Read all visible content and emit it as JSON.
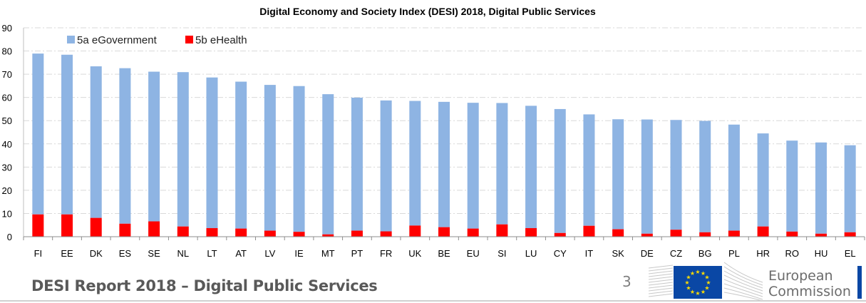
{
  "chart_data": {
    "type": "bar",
    "stacked": true,
    "title": "Digital Economy and Society Index (DESI) 2018, Digital Public Services",
    "xlabel": "",
    "ylabel": "",
    "ylim": [
      0,
      90
    ],
    "yticks": [
      0,
      10,
      20,
      30,
      40,
      50,
      60,
      70,
      80,
      90
    ],
    "grid": true,
    "legend_position": "top-left",
    "categories": [
      "FI",
      "EE",
      "DK",
      "ES",
      "SE",
      "NL",
      "LT",
      "AT",
      "LV",
      "IE",
      "MT",
      "PT",
      "FR",
      "UK",
      "BE",
      "EU",
      "SI",
      "LU",
      "CY",
      "IT",
      "SK",
      "DE",
      "CZ",
      "BG",
      "PL",
      "HR",
      "RO",
      "HU",
      "EL"
    ],
    "totals": [
      78.9,
      78.4,
      73.4,
      72.6,
      71.1,
      70.9,
      68.6,
      66.8,
      65.4,
      64.9,
      61.4,
      59.9,
      58.7,
      58.5,
      58.1,
      57.7,
      57.6,
      56.4,
      55.0,
      52.7,
      50.6,
      50.5,
      50.3,
      49.9,
      48.3,
      44.5,
      41.4,
      40.6,
      39.4
    ],
    "series": [
      {
        "name": "5b eHealth",
        "color": "#ff0000",
        "values": [
          9.6,
          9.6,
          8.1,
          5.6,
          6.6,
          4.4,
          3.7,
          3.5,
          2.6,
          2.1,
          1.0,
          2.6,
          2.3,
          4.8,
          4.1,
          3.5,
          5.3,
          3.7,
          1.6,
          4.7,
          3.2,
          1.3,
          3.0,
          1.9,
          2.6,
          4.4,
          2.2,
          1.3,
          1.9
        ]
      },
      {
        "name": "5a eGovernment",
        "color": "#8eb4e3",
        "values": [
          69.3,
          68.8,
          65.3,
          67.0,
          64.5,
          66.5,
          64.9,
          63.3,
          62.8,
          62.8,
          60.4,
          57.3,
          56.4,
          53.7,
          54.0,
          54.2,
          52.3,
          52.7,
          53.4,
          48.0,
          47.4,
          49.2,
          47.3,
          48.0,
          45.7,
          40.1,
          39.2,
          39.3,
          37.5
        ]
      }
    ],
    "legend": [
      {
        "label": "5a eGovernment",
        "color": "#8eb4e3"
      },
      {
        "label": "5b eHealth",
        "color": "#ff0000"
      }
    ]
  },
  "footer": {
    "report_title": "DESI Report 2018 – Digital Public Services",
    "page_number": "3",
    "logo_line1": "European",
    "logo_line2": "Commission"
  }
}
